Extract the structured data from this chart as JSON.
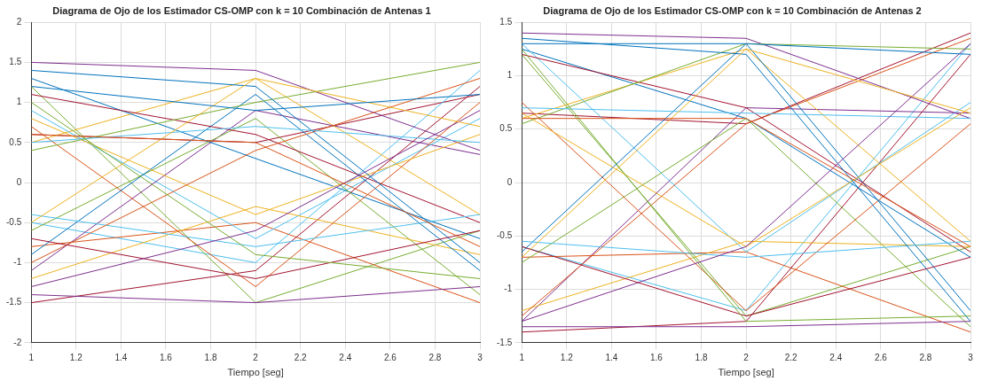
{
  "chart_data": [
    {
      "type": "line",
      "title": "Diagrama de Ojo de los Estimador CS-OMP con k = 10 Combinación de Antenas 1",
      "xlabel": "Tiempo [seg]",
      "x": [
        1,
        2,
        3
      ],
      "xlim": [
        1,
        3
      ],
      "xticks": [
        1,
        1.2,
        1.4,
        1.6,
        1.8,
        2,
        2.2,
        2.4,
        2.6,
        2.8,
        3
      ],
      "ylim": [
        -2,
        2
      ],
      "yticks": [
        -2,
        -1.5,
        -1,
        -0.5,
        0,
        0.5,
        1,
        1.5,
        2
      ],
      "grid": true,
      "marker": "none",
      "line_style": "solid",
      "series": [
        {
          "color": "#0072bd",
          "values": [
            1.2,
            0.9,
            1.1
          ]
        },
        {
          "color": "#d95319",
          "values": [
            0.6,
            0.5,
            -0.8
          ]
        },
        {
          "color": "#edb120",
          "values": [
            -0.5,
            1.3,
            0.7
          ]
        },
        {
          "color": "#7e2f8e",
          "values": [
            -1.3,
            -0.6,
            0.9
          ]
        },
        {
          "color": "#77ac30",
          "values": [
            1.0,
            -0.9,
            -1.2
          ]
        },
        {
          "color": "#4dbeee",
          "values": [
            0.5,
            0.7,
            0.5
          ]
        },
        {
          "color": "#a2142f",
          "values": [
            -0.7,
            -1.2,
            -0.6
          ]
        },
        {
          "color": "#0072bd",
          "values": [
            1.4,
            1.2,
            -1.0
          ]
        },
        {
          "color": "#d95319",
          "values": [
            -1.0,
            0.4,
            1.3
          ]
        },
        {
          "color": "#edb120",
          "values": [
            0.8,
            -0.4,
            0.6
          ]
        },
        {
          "color": "#7e2f8e",
          "values": [
            -1.4,
            -1.5,
            -1.3
          ]
        },
        {
          "color": "#77ac30",
          "values": [
            0.4,
            1.0,
            1.5
          ]
        },
        {
          "color": "#4dbeee",
          "values": [
            -0.4,
            -0.8,
            -0.4
          ]
        },
        {
          "color": "#a2142f",
          "values": [
            1.1,
            0.6,
            -0.5
          ]
        },
        {
          "color": "#0072bd",
          "values": [
            -0.9,
            1.1,
            -1.1
          ]
        },
        {
          "color": "#d95319",
          "values": [
            0.7,
            -1.3,
            1.0
          ]
        },
        {
          "color": "#edb120",
          "values": [
            -1.2,
            -0.3,
            -0.9
          ]
        },
        {
          "color": "#7e2f8e",
          "values": [
            1.5,
            1.4,
            0.4
          ]
        },
        {
          "color": "#77ac30",
          "values": [
            -0.6,
            0.8,
            -1.4
          ]
        },
        {
          "color": "#4dbeee",
          "values": [
            0.9,
            -0.7,
            0.8
          ]
        },
        {
          "color": "#a2142f",
          "values": [
            -1.5,
            -1.1,
            1.2
          ]
        },
        {
          "color": "#0072bd",
          "values": [
            1.3,
            0.3,
            -0.7
          ]
        },
        {
          "color": "#d95319",
          "values": [
            -0.8,
            -0.5,
            -1.5
          ]
        },
        {
          "color": "#edb120",
          "values": [
            0.5,
            1.3,
            -0.4
          ]
        },
        {
          "color": "#7e2f8e",
          "values": [
            -1.1,
            0.9,
            0.35
          ]
        },
        {
          "color": "#77ac30",
          "values": [
            1.2,
            -1.5,
            -0.6
          ]
        },
        {
          "color": "#4dbeee",
          "values": [
            -0.5,
            -1.0,
            1.4
          ]
        },
        {
          "color": "#a2142f",
          "values": [
            0.6,
            0.5,
            1.1
          ]
        }
      ]
    },
    {
      "type": "line",
      "title": "Diagrama de Ojo de los Estimador CS-OMP con k = 10 Combinación de Antenas 2",
      "xlabel": "Tiempo [seg]",
      "x": [
        1,
        2,
        3
      ],
      "xlim": [
        1,
        3
      ],
      "xticks": [
        1,
        1.2,
        1.4,
        1.6,
        1.8,
        2,
        2.2,
        2.4,
        2.6,
        2.8,
        3
      ],
      "ylim": [
        -1.5,
        1.5
      ],
      "yticks": [
        -1.5,
        -1,
        -0.5,
        0,
        0.5,
        1,
        1.5
      ],
      "grid": true,
      "marker": "none",
      "line_style": "solid",
      "series": [
        {
          "color": "#0072bd",
          "values": [
            1.3,
            1.3,
            1.2
          ]
        },
        {
          "color": "#d95319",
          "values": [
            0.6,
            0.6,
            -0.6
          ]
        },
        {
          "color": "#edb120",
          "values": [
            -0.7,
            1.25,
            0.65
          ]
        },
        {
          "color": "#7e2f8e",
          "values": [
            -1.3,
            -0.6,
            1.3
          ]
        },
        {
          "color": "#77ac30",
          "values": [
            1.25,
            -1.3,
            -1.25
          ]
        },
        {
          "color": "#4dbeee",
          "values": [
            0.7,
            0.65,
            0.6
          ]
        },
        {
          "color": "#a2142f",
          "values": [
            -0.6,
            -1.25,
            -0.7
          ]
        },
        {
          "color": "#0072bd",
          "values": [
            1.35,
            1.2,
            -1.3
          ]
        },
        {
          "color": "#d95319",
          "values": [
            -1.25,
            0.55,
            1.35
          ]
        },
        {
          "color": "#edb120",
          "values": [
            0.65,
            -0.6,
            0.7
          ]
        },
        {
          "color": "#7e2f8e",
          "values": [
            -1.35,
            -1.35,
            -1.3
          ]
        },
        {
          "color": "#77ac30",
          "values": [
            0.55,
            1.3,
            1.25
          ]
        },
        {
          "color": "#4dbeee",
          "values": [
            -0.55,
            -0.7,
            -0.55
          ]
        },
        {
          "color": "#a2142f",
          "values": [
            1.2,
            0.7,
            -0.65
          ]
        },
        {
          "color": "#0072bd",
          "values": [
            -0.65,
            1.3,
            -1.2
          ]
        },
        {
          "color": "#d95319",
          "values": [
            0.75,
            -1.2,
            0.55
          ]
        },
        {
          "color": "#edb120",
          "values": [
            -1.2,
            -0.55,
            -0.6
          ]
        },
        {
          "color": "#7e2f8e",
          "values": [
            1.4,
            1.35,
            0.6
          ]
        },
        {
          "color": "#77ac30",
          "values": [
            -0.75,
            0.6,
            -1.35
          ]
        },
        {
          "color": "#4dbeee",
          "values": [
            1.3,
            -0.65,
            0.75
          ]
        },
        {
          "color": "#a2142f",
          "values": [
            -1.4,
            -1.3,
            1.2
          ]
        },
        {
          "color": "#0072bd",
          "values": [
            1.25,
            0.6,
            -0.7
          ]
        },
        {
          "color": "#d95319",
          "values": [
            -0.7,
            -0.65,
            -1.4
          ]
        },
        {
          "color": "#edb120",
          "values": [
            0.6,
            1.25,
            -0.55
          ]
        },
        {
          "color": "#7e2f8e",
          "values": [
            -1.3,
            0.7,
            0.65
          ]
        },
        {
          "color": "#77ac30",
          "values": [
            1.2,
            -1.25,
            -0.6
          ]
        },
        {
          "color": "#4dbeee",
          "values": [
            -0.6,
            -1.2,
            1.3
          ]
        },
        {
          "color": "#a2142f",
          "values": [
            0.65,
            0.55,
            1.4
          ]
        }
      ]
    }
  ]
}
